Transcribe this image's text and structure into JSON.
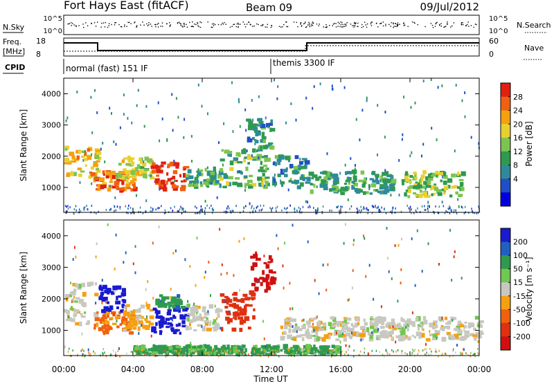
{
  "header": {
    "radar_title": "Fort Hays East (fitACF)",
    "beam": "Beam 09",
    "date": "09/Jul/2012"
  },
  "top_panels": {
    "nsky_label": "N.Sky",
    "freq_label_line1": "Freq.",
    "freq_label_line2": "[MHz]",
    "cpid_label": "CPID",
    "nsearch_label": "N.Search",
    "nave_label": "Nave",
    "nsky_ticks": [
      "10^5",
      "10^0"
    ],
    "nsearch_ticks": [
      "10^5",
      "10^0"
    ],
    "freq_ticks": [
      "18",
      "8"
    ],
    "nave_ticks": [
      "60",
      "0"
    ],
    "cpid_segments": [
      {
        "label": "normal (fast) 151 IF",
        "start_h": 0
      },
      {
        "label": "themis 3300 IF",
        "start_h": 12
      }
    ]
  },
  "chart_data": [
    {
      "type": "heatmap",
      "name": "power",
      "ylabel": "Slant Range [km]",
      "xlabel": "",
      "xlim": [
        0,
        24
      ],
      "ylim": [
        200,
        4500
      ],
      "yticks": [
        "4000",
        "3000",
        "2000",
        "1000"
      ],
      "colorbar_label": "Power [dB]",
      "colorbar_ticks": [
        "28",
        "24",
        "20",
        "16",
        "12",
        "8",
        "4"
      ],
      "colorbar_colors": [
        "#0000dd",
        "#1f4fc8",
        "#2e8a9a",
        "#2f9a4f",
        "#7cc450",
        "#e8d030",
        "#f5a010",
        "#f06010",
        "#e02010"
      ],
      "colorbar_range": [
        0,
        32
      ]
    },
    {
      "type": "heatmap",
      "name": "velocity",
      "ylabel": "Slant Range [km]",
      "xlabel": "Time UT",
      "xlim": [
        0,
        24
      ],
      "ylim": [
        200,
        4500
      ],
      "xticks": [
        "00:00",
        "04:00",
        "08:00",
        "12:00",
        "16:00",
        "20:00",
        "00:00"
      ],
      "yticks": [
        "4000",
        "3000",
        "2000",
        "1000"
      ],
      "colorbar_label": "Velocity [m s⁻¹]",
      "colorbar_ticks": [
        "200",
        "100",
        "50",
        "15",
        "-15",
        "-50",
        "-100",
        "-200"
      ],
      "colorbar_colors": [
        "#1a1ad0",
        "#2060c0",
        "#2f9a4f",
        "#70c850",
        "#c8c8c0",
        "#f5a010",
        "#f06010",
        "#e03010",
        "#d01010"
      ]
    }
  ],
  "data_features": {
    "power_blobs": [
      {
        "t0": 0.0,
        "t1": 2.0,
        "r0": 1300,
        "r1": 2300,
        "level": 22
      },
      {
        "t0": 1.7,
        "t1": 4.2,
        "r0": 900,
        "r1": 1500,
        "level": 26
      },
      {
        "t0": 3.0,
        "t1": 5.0,
        "r0": 1300,
        "r1": 2000,
        "level": 18
      },
      {
        "t0": 5.0,
        "t1": 7.0,
        "r0": 900,
        "r1": 1800,
        "level": 30
      },
      {
        "t0": 7.0,
        "t1": 9.0,
        "r0": 1000,
        "r1": 1600,
        "level": 12
      },
      {
        "t0": 9.0,
        "t1": 11.7,
        "r0": 1000,
        "r1": 2200,
        "level": 14
      },
      {
        "t0": 10.5,
        "t1": 12.0,
        "r0": 2200,
        "r1": 3200,
        "level": 10
      },
      {
        "t0": 12.0,
        "t1": 14.0,
        "r0": 1000,
        "r1": 2000,
        "level": 10
      },
      {
        "t0": 14.0,
        "t1": 19.0,
        "r0": 800,
        "r1": 1500,
        "level": 12
      },
      {
        "t0": 19.5,
        "t1": 23.0,
        "r0": 700,
        "r1": 1500,
        "level": 16
      }
    ],
    "velocity_blobs": [
      {
        "t0": 0.0,
        "t1": 1.8,
        "r0": 1200,
        "r1": 2500,
        "level": 0
      },
      {
        "t0": 1.7,
        "t1": 4.0,
        "r0": 900,
        "r1": 1600,
        "level": -60
      },
      {
        "t0": 2.0,
        "t1": 3.4,
        "r0": 1600,
        "r1": 2400,
        "level": 180
      },
      {
        "t0": 3.4,
        "t1": 5.0,
        "r0": 1000,
        "r1": 1800,
        "level": -30
      },
      {
        "t0": 5.0,
        "t1": 7.0,
        "r0": 900,
        "r1": 1700,
        "level": 210
      },
      {
        "t0": 5.2,
        "t1": 6.8,
        "r0": 1700,
        "r1": 2100,
        "level": 60
      },
      {
        "t0": 7.0,
        "t1": 9.0,
        "r0": 1000,
        "r1": 1800,
        "level": 0
      },
      {
        "t0": 9.0,
        "t1": 11.0,
        "r0": 1000,
        "r1": 2200,
        "level": -120
      },
      {
        "t0": 10.7,
        "t1": 12.0,
        "r0": 2200,
        "r1": 3500,
        "level": -220
      },
      {
        "t0": 12.5,
        "t1": 24.0,
        "r0": 700,
        "r1": 1400,
        "level": 0
      },
      {
        "t0": 4.0,
        "t1": 16.0,
        "r0": 250,
        "r1": 500,
        "level": 40
      }
    ]
  }
}
